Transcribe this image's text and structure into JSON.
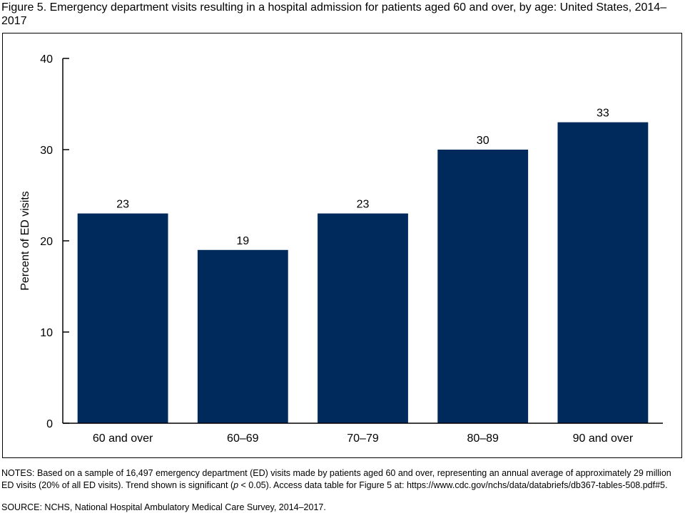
{
  "title": "Figure 5. Emergency department visits resulting in a hospital admission for patients aged 60 and over, by age: United States, 2014–2017",
  "notes_prefix": "NOTES: Based on a sample of 16,497 emergency department (ED) visits made by patients aged 60 and over, representing an annual average of approximately 29 million ED visits (20% of all ED visits). Trend shown is significant (",
  "notes_p": "p",
  "notes_suffix": " < 0.05). Access data table for Figure 5 at: https://www.cdc.gov/nchs/data/databriefs/db367-tables-508.pdf#5.",
  "source": "SOURCE: NCHS, National Hospital Ambulatory Medical Care Survey, 2014–2017.",
  "colors": {
    "bar": "#002a5c"
  },
  "chart_data": {
    "type": "bar",
    "title": "",
    "xlabel": "",
    "ylabel": "Percent of ED visits",
    "categories": [
      "60 and over",
      "60–69",
      "70–79",
      "80–89",
      "90 and over"
    ],
    "values": [
      23,
      19,
      23,
      30,
      33
    ],
    "ylim": [
      0,
      40
    ],
    "yticks": [
      0,
      10,
      20,
      30,
      40
    ],
    "grid": false,
    "data_labels": true
  }
}
